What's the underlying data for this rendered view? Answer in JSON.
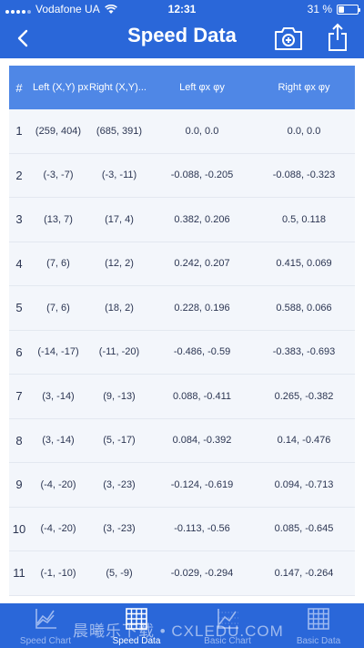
{
  "status": {
    "carrier": "Vodafone UA",
    "time": "12:31",
    "battery": "31 %",
    "battery_level": 0.31
  },
  "nav": {
    "title": "Speed Data"
  },
  "table": {
    "headers": [
      "#",
      "Left (X,Y) px",
      "Right (X,Y)...",
      "Left φx φy",
      "Right φx φy"
    ],
    "rows": [
      [
        "1",
        "(259, 404)",
        "(685, 391)",
        "0.0, 0.0",
        "0.0, 0.0"
      ],
      [
        "2",
        "(-3, -7)",
        "(-3, -11)",
        "-0.088, -0.205",
        "-0.088, -0.323"
      ],
      [
        "3",
        "(13, 7)",
        "(17, 4)",
        "0.382, 0.206",
        "0.5, 0.118"
      ],
      [
        "4",
        "(7, 6)",
        "(12, 2)",
        "0.242, 0.207",
        "0.415, 0.069"
      ],
      [
        "5",
        "(7, 6)",
        "(18, 2)",
        "0.228, 0.196",
        "0.588, 0.066"
      ],
      [
        "6",
        "(-14, -17)",
        "(-11, -20)",
        "-0.486, -0.59",
        "-0.383, -0.693"
      ],
      [
        "7",
        "(3, -14)",
        "(9, -13)",
        "0.088, -0.411",
        "0.265, -0.382"
      ],
      [
        "8",
        "(3, -14)",
        "(5, -17)",
        "0.084, -0.392",
        "0.14, -0.476"
      ],
      [
        "9",
        "(-4, -20)",
        "(3, -23)",
        "-0.124, -0.619",
        "0.094, -0.713"
      ],
      [
        "10",
        "(-4, -20)",
        "(3, -23)",
        "-0.113, -0.56",
        "0.085, -0.645"
      ],
      [
        "11",
        "(-1, -10)",
        "(5, -9)",
        "-0.029, -0.294",
        "0.147, -0.264"
      ]
    ]
  },
  "tabs": [
    {
      "label": "Speed Chart",
      "icon": "speed-chart-icon",
      "active": false
    },
    {
      "label": "Speed Data",
      "icon": "grid-icon",
      "active": true
    },
    {
      "label": "Basic Chart",
      "icon": "basic-chart-icon",
      "active": false
    },
    {
      "label": "Basic Data",
      "icon": "grid-icon",
      "active": false
    }
  ],
  "watermark": "晨曦乐下载 • CXLEDU.COM",
  "colors": {
    "primary": "#2a67d9",
    "header": "#4f87e6",
    "row_bg": "#f3f6fb"
  }
}
